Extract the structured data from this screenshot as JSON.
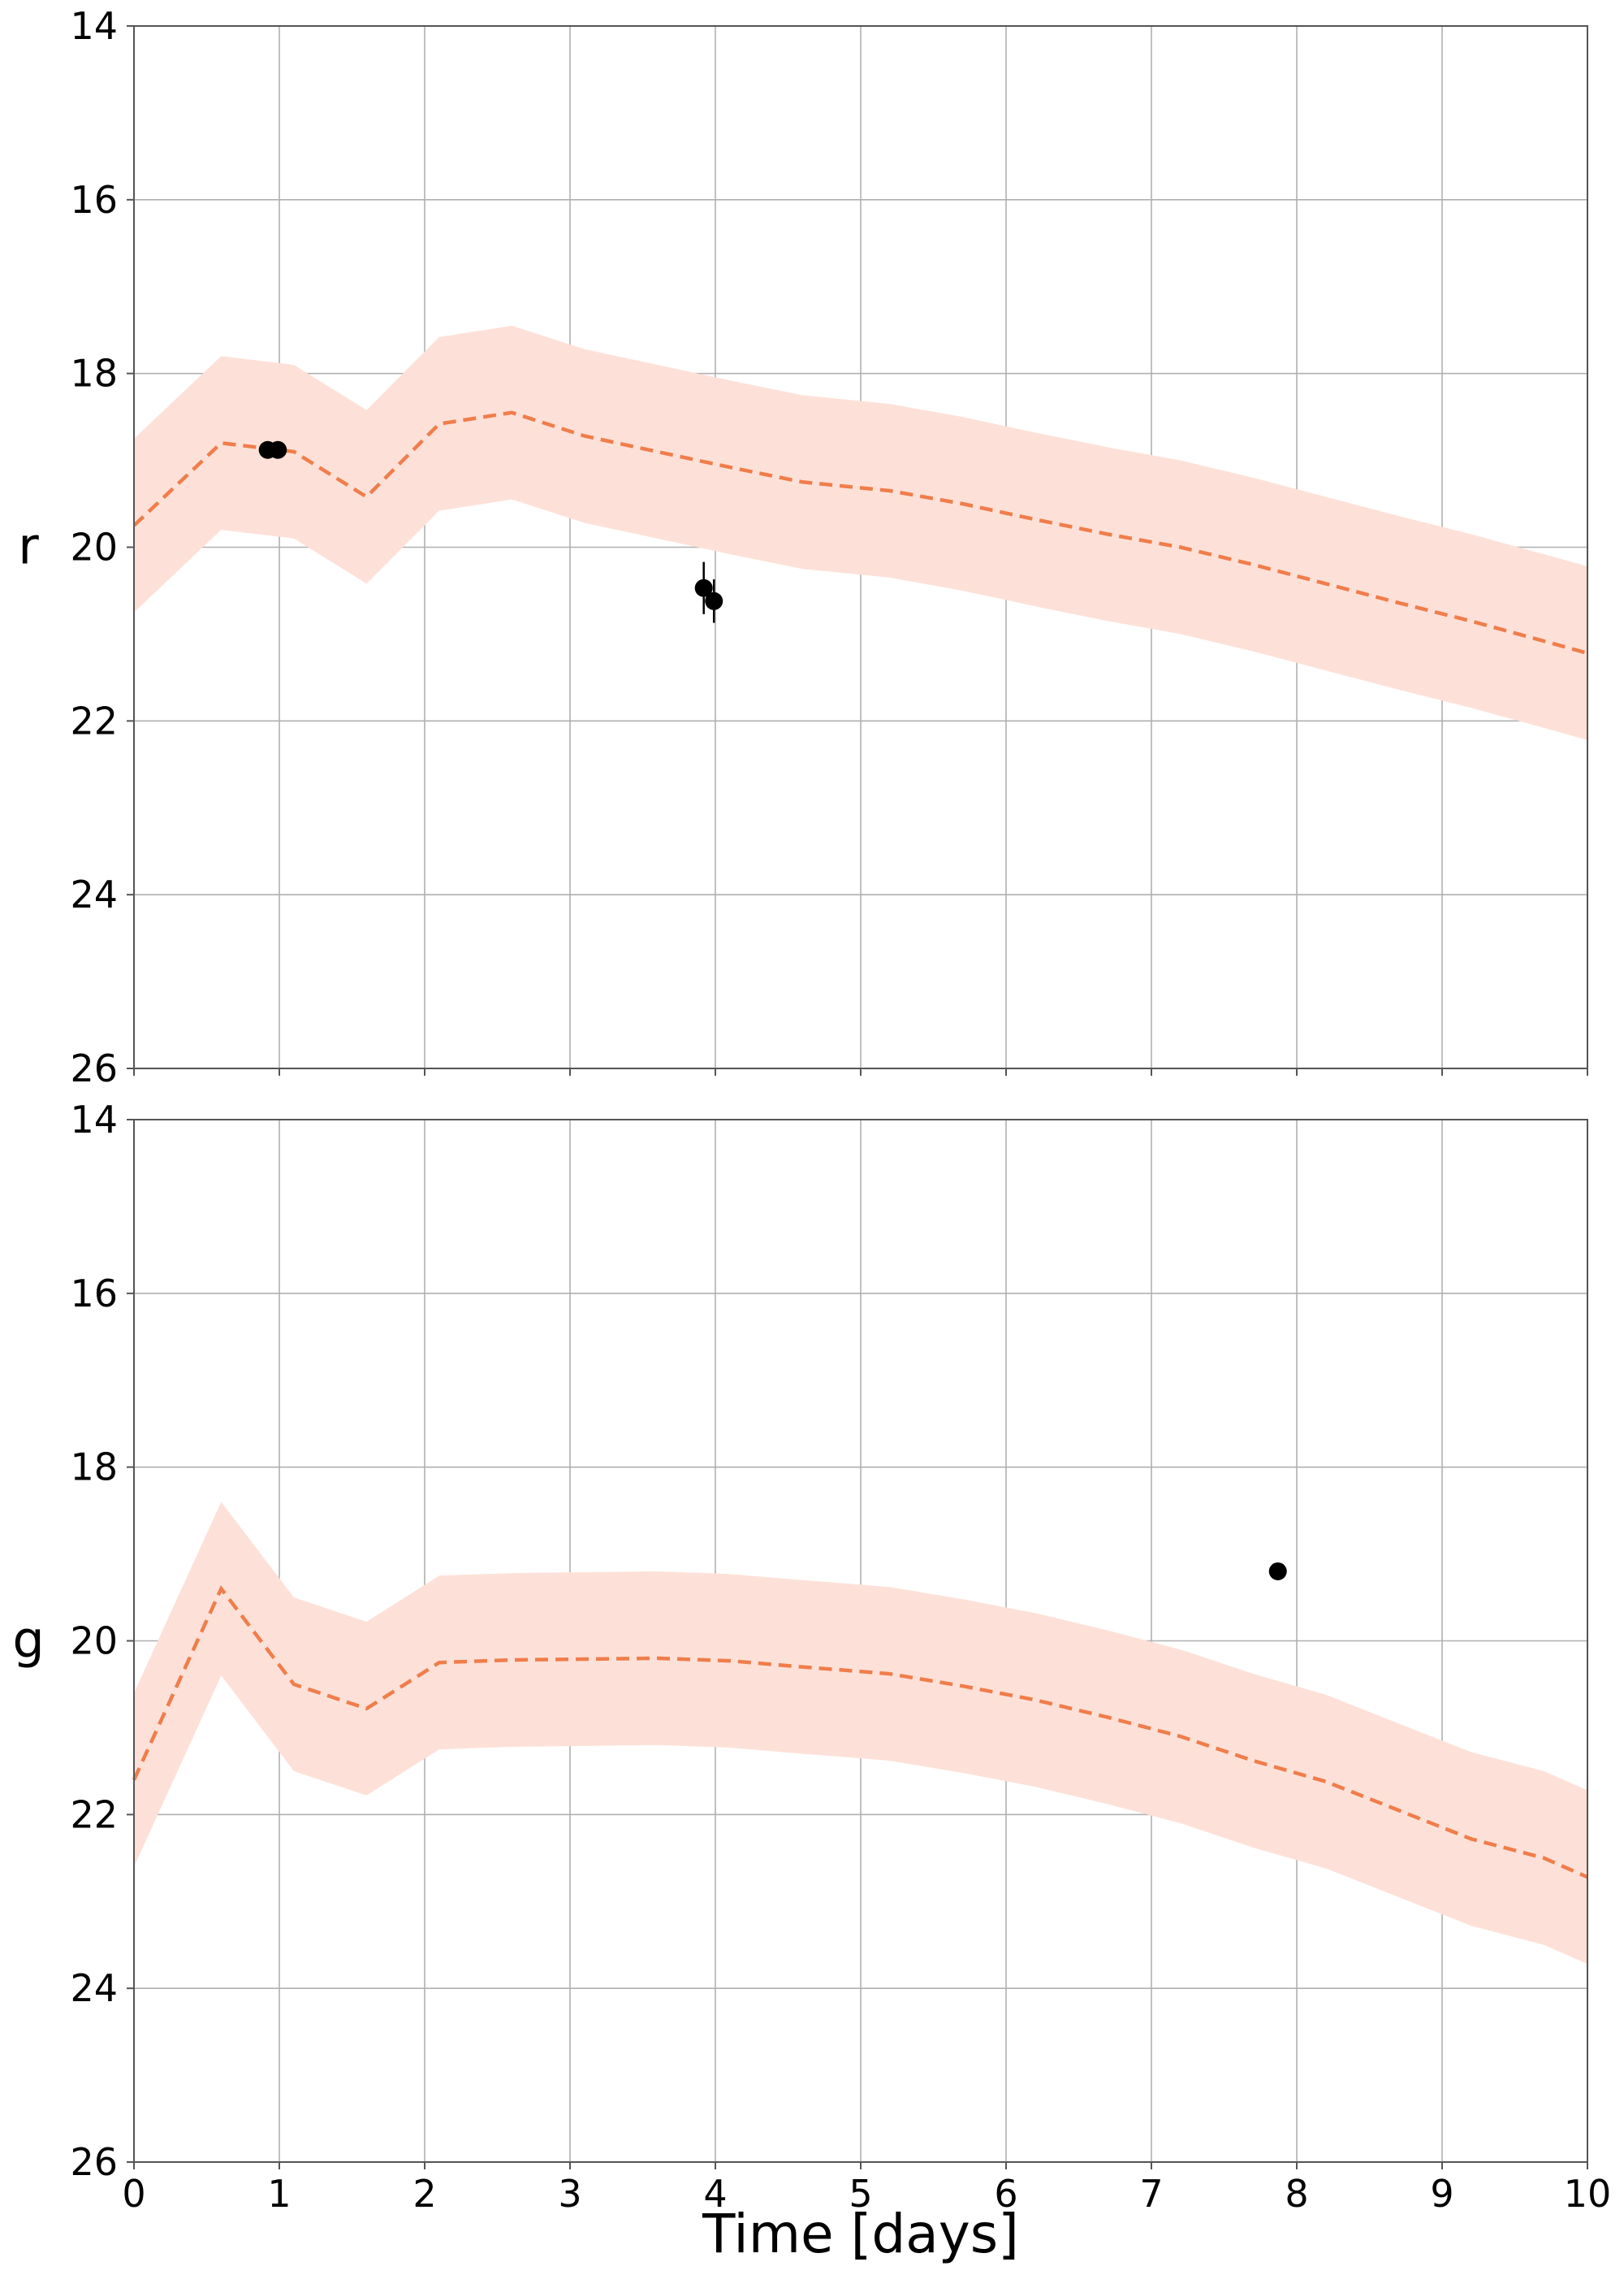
{
  "chart_data": [
    {
      "type": "line",
      "ylabel": "r",
      "xlabel": "",
      "xlim": [
        0,
        10
      ],
      "ylim": [
        14,
        26
      ],
      "y_inverted": true,
      "x_ticks": [
        "0",
        "1",
        "2",
        "3",
        "4",
        "5",
        "6",
        "7",
        "8",
        "9",
        "10"
      ],
      "y_ticks": [
        "14",
        "16",
        "18",
        "20",
        "22",
        "24",
        "26"
      ],
      "grid": true,
      "colors": {
        "model": "#f07d4b",
        "band": "#fde1d8",
        "points": "#000000"
      },
      "model": {
        "x": [
          0,
          0.6,
          1.1,
          1.6,
          2.1,
          2.6,
          3.1,
          3.6,
          4.1,
          4.6,
          5.2,
          5.7,
          6.2,
          6.7,
          7.2,
          7.7,
          8.2,
          8.7,
          9.2,
          9.7,
          10
        ],
        "y": [
          19.75,
          18.8,
          18.9,
          19.42,
          18.58,
          18.45,
          18.72,
          18.9,
          19.08,
          19.25,
          19.35,
          19.5,
          19.68,
          19.85,
          20.0,
          20.2,
          20.42,
          20.64,
          20.85,
          21.08,
          21.22
        ],
        "band_half_width": 1.0
      },
      "points": [
        {
          "x": 0.92,
          "y": 18.88,
          "yerr": 0.06
        },
        {
          "x": 0.99,
          "y": 18.88,
          "yerr": 0.06
        },
        {
          "x": 3.92,
          "y": 20.47,
          "yerr": 0.3
        },
        {
          "x": 3.99,
          "y": 20.62,
          "yerr": 0.25
        }
      ]
    },
    {
      "type": "line",
      "ylabel": "g",
      "xlabel": "Time [days]",
      "xlim": [
        0,
        10
      ],
      "ylim": [
        14,
        26
      ],
      "y_inverted": true,
      "x_ticks": [
        "0",
        "1",
        "2",
        "3",
        "4",
        "5",
        "6",
        "7",
        "8",
        "9",
        "10"
      ],
      "y_ticks": [
        "14",
        "16",
        "18",
        "20",
        "22",
        "24",
        "26"
      ],
      "grid": true,
      "colors": {
        "model": "#f07d4b",
        "band": "#fde1d8",
        "points": "#000000"
      },
      "model": {
        "x": [
          0,
          0.6,
          1.1,
          1.6,
          2.1,
          2.6,
          3.1,
          3.6,
          4.1,
          4.6,
          5.2,
          5.7,
          6.2,
          6.7,
          7.2,
          7.7,
          8.2,
          8.7,
          9.2,
          9.7,
          10
        ],
        "y": [
          21.6,
          19.4,
          20.5,
          20.78,
          20.25,
          20.22,
          20.21,
          20.2,
          20.23,
          20.3,
          20.38,
          20.52,
          20.68,
          20.88,
          21.1,
          21.38,
          21.62,
          21.95,
          22.28,
          22.5,
          22.72
        ],
        "band_half_width": 1.0
      },
      "points": [
        {
          "x": 7.87,
          "y": 19.2,
          "yerr": 0.08
        }
      ]
    }
  ]
}
